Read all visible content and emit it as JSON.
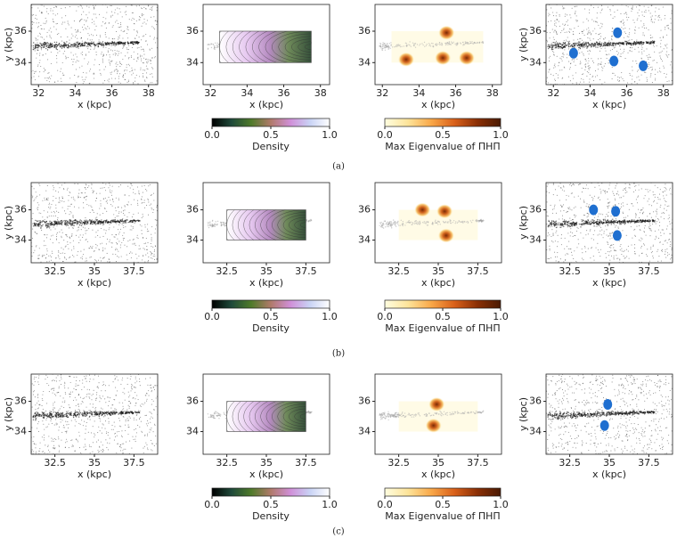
{
  "chart_data": [
    {
      "type": "scatter",
      "xlabel": "x (kpc)",
      "ylabel": "y (kpc)",
      "xlim": [
        31.6,
        38.5
      ],
      "ylim": [
        32.6,
        37.7
      ],
      "xticks": [
        32,
        34,
        36,
        38
      ],
      "yticks": [
        34,
        36
      ]
    },
    {
      "type": "density",
      "xlabel": "x (kpc)",
      "xlim": [
        31.6,
        38.5
      ],
      "ylim": [
        32.6,
        37.7
      ],
      "xticks": [
        32,
        34,
        36,
        38
      ],
      "yticks": [
        34,
        36
      ],
      "region": [
        32.5,
        37.5,
        34,
        36
      ]
    },
    {
      "type": "heatmap",
      "xlabel": "x (kpc)",
      "xlim": [
        31.6,
        38.5
      ],
      "ylim": [
        32.6,
        37.7
      ],
      "xticks": [
        32,
        34,
        36,
        38
      ],
      "yticks": [
        34,
        36
      ],
      "region": [
        32.5,
        37.5,
        34,
        36
      ],
      "blobs": [
        {
          "x": 33.3,
          "y": 34.2
        },
        {
          "x": 35.5,
          "y": 35.9
        },
        {
          "x": 35.3,
          "y": 34.3
        },
        {
          "x": 36.6,
          "y": 34.3
        }
      ]
    },
    {
      "type": "cluster",
      "xlabel": "x (kpc)",
      "ylabel": "y (kpc)",
      "xlim": [
        31.6,
        38.5
      ],
      "ylim": [
        32.6,
        37.7
      ],
      "xticks": [
        32,
        34,
        36,
        38
      ],
      "yticks": [
        34,
        36
      ],
      "blobs": [
        {
          "x": 33.1,
          "y": 34.6
        },
        {
          "x": 35.5,
          "y": 35.9
        },
        {
          "x": 35.3,
          "y": 34.1
        },
        {
          "x": 36.9,
          "y": 33.8
        }
      ]
    },
    {
      "type": "scatter",
      "xlabel": "x (kpc)",
      "ylabel": "y (kpc)",
      "xlim": [
        31,
        39
      ],
      "ylim": [
        32.5,
        37.8
      ],
      "xticks": [
        32.5,
        35.0,
        37.5
      ],
      "yticks": [
        34,
        36
      ]
    },
    {
      "type": "density",
      "xlabel": "x (kpc)",
      "xlim": [
        31,
        39
      ],
      "ylim": [
        32.5,
        37.8
      ],
      "xticks": [
        32.5,
        35.0,
        37.5
      ],
      "yticks": [
        34,
        36
      ],
      "region": [
        32.5,
        37.5,
        34,
        36
      ]
    },
    {
      "type": "heatmap",
      "xlabel": "x (kpc)",
      "xlim": [
        31,
        39
      ],
      "ylim": [
        32.5,
        37.8
      ],
      "xticks": [
        32.5,
        35.0,
        37.5
      ],
      "yticks": [
        34,
        36
      ],
      "region": [
        32.5,
        37.5,
        34,
        36
      ],
      "blobs": [
        {
          "x": 35.4,
          "y": 35.9
        },
        {
          "x": 35.5,
          "y": 34.3
        },
        {
          "x": 34.0,
          "y": 36.0
        }
      ]
    },
    {
      "type": "cluster",
      "xlabel": "x (kpc)",
      "ylabel": "y (kpc)",
      "xlim": [
        31,
        39
      ],
      "ylim": [
        32.5,
        37.8
      ],
      "xticks": [
        32.5,
        35.0,
        37.5
      ],
      "yticks": [
        34,
        36
      ],
      "blobs": [
        {
          "x": 35.4,
          "y": 35.9
        },
        {
          "x": 35.5,
          "y": 34.3
        },
        {
          "x": 34.0,
          "y": 36.0
        }
      ]
    },
    {
      "type": "scatter",
      "xlabel": "x (kpc)",
      "ylabel": "y (kpc)",
      "xlim": [
        31,
        39
      ],
      "ylim": [
        32.5,
        37.8
      ],
      "xticks": [
        32.5,
        35.0,
        37.5
      ],
      "yticks": [
        34,
        36
      ]
    },
    {
      "type": "density",
      "xlabel": "x (kpc)",
      "xlim": [
        31,
        39
      ],
      "ylim": [
        32.5,
        37.8
      ],
      "xticks": [
        32.5,
        35.0,
        37.5
      ],
      "yticks": [
        34,
        36
      ],
      "region": [
        32.5,
        37.5,
        34,
        36
      ]
    },
    {
      "type": "heatmap",
      "xlabel": "x (kpc)",
      "xlim": [
        31,
        39
      ],
      "ylim": [
        32.5,
        37.8
      ],
      "xticks": [
        32.5,
        35.0,
        37.5
      ],
      "yticks": [
        34,
        36
      ],
      "region": [
        32.5,
        37.5,
        34,
        36
      ],
      "blobs": [
        {
          "x": 34.9,
          "y": 35.8
        },
        {
          "x": 34.7,
          "y": 34.4
        }
      ]
    },
    {
      "type": "cluster",
      "xlabel": "x (kpc)",
      "ylabel": "y (kpc)",
      "xlim": [
        31,
        39
      ],
      "ylim": [
        32.5,
        37.8
      ],
      "xticks": [
        32.5,
        35.0,
        37.5
      ],
      "yticks": [
        34,
        36
      ],
      "blobs": [
        {
          "x": 34.9,
          "y": 35.8
        },
        {
          "x": 34.7,
          "y": 34.4
        }
      ]
    }
  ],
  "colorbars": [
    {
      "label": "Density",
      "lim": [
        0,
        1
      ],
      "ticks": [
        {
          "value": 0,
          "label": "0.0"
        },
        {
          "value": 0.5,
          "label": "0.5"
        },
        {
          "value": 1,
          "label": "1.0"
        }
      ],
      "colors": [
        "#000000",
        "#1f4a3a",
        "#4f7a2a",
        "#b07a6a",
        "#d08fd8",
        "#c9d3f5",
        "#ffffff"
      ]
    },
    {
      "label": "Max Eigenvalue of ΠHΠ",
      "lim": [
        0,
        1
      ],
      "ticks": [
        {
          "value": 0,
          "label": "0.0"
        },
        {
          "value": 0.5,
          "label": "0.5"
        },
        {
          "value": 1,
          "label": "1.0"
        }
      ],
      "colors": [
        "#fffde0",
        "#fde49a",
        "#f9a849",
        "#d9601a",
        "#8a2f05",
        "#4a1a03"
      ]
    },
    {
      "label": "Density",
      "lim": [
        0,
        1
      ],
      "ticks": [
        {
          "value": 0,
          "label": "0.0"
        },
        {
          "value": 0.5,
          "label": "0.5"
        },
        {
          "value": 1,
          "label": "1.0"
        }
      ],
      "colors": [
        "#000000",
        "#1f4a3a",
        "#4f7a2a",
        "#b07a6a",
        "#d08fd8",
        "#c9d3f5",
        "#ffffff"
      ]
    },
    {
      "label": "Max Eigenvalue of ΠHΠ",
      "lim": [
        0,
        1
      ],
      "ticks": [
        {
          "value": 0,
          "label": "0.0"
        },
        {
          "value": 0.5,
          "label": "0.5"
        },
        {
          "value": 1,
          "label": "1.0"
        }
      ],
      "colors": [
        "#fffde0",
        "#fde49a",
        "#f9a849",
        "#d9601a",
        "#8a2f05",
        "#4a1a03"
      ]
    },
    {
      "label": "Density",
      "lim": [
        0,
        1
      ],
      "ticks": [
        {
          "value": 0,
          "label": "0.0"
        },
        {
          "value": 0.5,
          "label": "0.5"
        },
        {
          "value": 1,
          "label": "1.0"
        }
      ],
      "colors": [
        "#000000",
        "#1f4a3a",
        "#4f7a2a",
        "#b07a6a",
        "#d08fd8",
        "#c9d3f5",
        "#ffffff"
      ]
    },
    {
      "label": "Max Eigenvalue of ΠHΠ",
      "lim": [
        0,
        1
      ],
      "ticks": [
        {
          "value": 0,
          "label": "0.0"
        },
        {
          "value": 0.5,
          "label": "0.5"
        },
        {
          "value": 1,
          "label": "1.0"
        }
      ],
      "colors": [
        "#fffde0",
        "#fde49a",
        "#f9a849",
        "#d9601a",
        "#8a2f05",
        "#4a1a03"
      ]
    }
  ],
  "captions": [
    "(a)",
    "(b)",
    "(c)"
  ]
}
